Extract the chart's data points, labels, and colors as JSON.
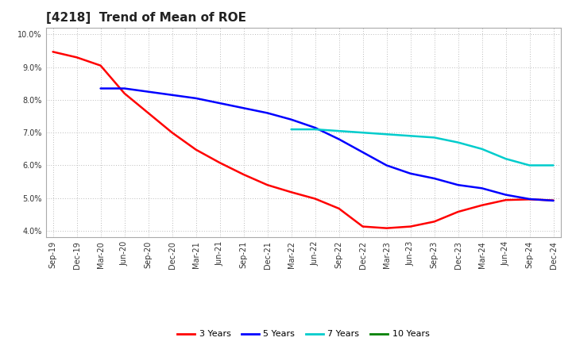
{
  "title": "[4218]  Trend of Mean of ROE",
  "xlim_labels": [
    "Sep-19",
    "Dec-19",
    "Mar-20",
    "Jun-20",
    "Sep-20",
    "Dec-20",
    "Mar-21",
    "Jun-21",
    "Sep-21",
    "Dec-21",
    "Mar-22",
    "Jun-22",
    "Sep-22",
    "Dec-22",
    "Mar-23",
    "Jun-23",
    "Sep-23",
    "Dec-23",
    "Mar-24",
    "Jun-24",
    "Sep-24",
    "Dec-24"
  ],
  "ylim": [
    0.038,
    0.102
  ],
  "yticks": [
    0.04,
    0.05,
    0.06,
    0.07,
    0.08,
    0.09,
    0.1
  ],
  "series": {
    "3 Years": {
      "color": "#FF0000",
      "data": [
        [
          "Sep-19",
          0.0947
        ],
        [
          "Dec-19",
          0.093
        ],
        [
          "Mar-20",
          0.0905
        ],
        [
          "Jun-20",
          0.082
        ],
        [
          "Sep-20",
          0.076
        ],
        [
          "Dec-20",
          0.07
        ],
        [
          "Mar-21",
          0.0648
        ],
        [
          "Jun-21",
          0.0608
        ],
        [
          "Sep-21",
          0.0572
        ],
        [
          "Dec-21",
          0.054
        ],
        [
          "Mar-22",
          0.0518
        ],
        [
          "Jun-22",
          0.0498
        ],
        [
          "Sep-22",
          0.0468
        ],
        [
          "Dec-22",
          0.0413
        ],
        [
          "Mar-23",
          0.0408
        ],
        [
          "Jun-23",
          0.0413
        ],
        [
          "Sep-23",
          0.0428
        ],
        [
          "Dec-23",
          0.0458
        ],
        [
          "Mar-24",
          0.0478
        ],
        [
          "Jun-24",
          0.0494
        ],
        [
          "Sep-24",
          0.0496
        ],
        [
          "Dec-24",
          0.0493
        ]
      ]
    },
    "5 Years": {
      "color": "#0000FF",
      "data": [
        [
          "Mar-20",
          0.0835
        ],
        [
          "Jun-20",
          0.0835
        ],
        [
          "Sep-20",
          0.0825
        ],
        [
          "Dec-20",
          0.0815
        ],
        [
          "Mar-21",
          0.0805
        ],
        [
          "Jun-21",
          0.079
        ],
        [
          "Sep-21",
          0.0775
        ],
        [
          "Dec-21",
          0.076
        ],
        [
          "Mar-22",
          0.074
        ],
        [
          "Jun-22",
          0.0715
        ],
        [
          "Sep-22",
          0.068
        ],
        [
          "Dec-22",
          0.064
        ],
        [
          "Mar-23",
          0.06
        ],
        [
          "Jun-23",
          0.0575
        ],
        [
          "Sep-23",
          0.056
        ],
        [
          "Dec-23",
          0.054
        ],
        [
          "Mar-24",
          0.053
        ],
        [
          "Jun-24",
          0.051
        ],
        [
          "Sep-24",
          0.0497
        ],
        [
          "Dec-24",
          0.0492
        ]
      ]
    },
    "7 Years": {
      "color": "#00CCCC",
      "data": [
        [
          "Mar-22",
          0.071
        ],
        [
          "Jun-22",
          0.071
        ],
        [
          "Sep-22",
          0.0705
        ],
        [
          "Dec-22",
          0.07
        ],
        [
          "Mar-23",
          0.0695
        ],
        [
          "Jun-23",
          0.069
        ],
        [
          "Sep-23",
          0.0685
        ],
        [
          "Dec-23",
          0.067
        ],
        [
          "Mar-24",
          0.065
        ],
        [
          "Jun-24",
          0.062
        ],
        [
          "Sep-24",
          0.06
        ],
        [
          "Dec-24",
          0.06
        ]
      ]
    },
    "10 Years": {
      "color": "#008000",
      "data": []
    }
  },
  "background_color": "#ffffff",
  "grid_color": "#bbbbbb",
  "title_fontsize": 11,
  "tick_fontsize": 7,
  "legend_fontsize": 8
}
